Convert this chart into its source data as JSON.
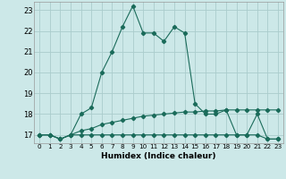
{
  "title": "",
  "xlabel": "Humidex (Indice chaleur)",
  "bg_color": "#cce8e8",
  "grid_color": "#aacccc",
  "line_color": "#1a6b5a",
  "xlim": [
    -0.5,
    23.5
  ],
  "ylim": [
    16.6,
    23.4
  ],
  "yticks": [
    17,
    18,
    19,
    20,
    21,
    22,
    23
  ],
  "xticks": [
    0,
    1,
    2,
    3,
    4,
    5,
    6,
    7,
    8,
    9,
    10,
    11,
    12,
    13,
    14,
    15,
    16,
    17,
    18,
    19,
    20,
    21,
    22,
    23
  ],
  "series": [
    {
      "x": [
        0,
        1,
        2,
        3,
        4,
        5,
        6,
        7,
        8,
        9,
        10,
        11,
        12,
        13,
        14,
        15,
        16,
        17,
        18,
        19,
        20,
        21,
        22,
        23
      ],
      "y": [
        17,
        17,
        16.8,
        17,
        17,
        17,
        17,
        17,
        17,
        17,
        17,
        17,
        17,
        17,
        17,
        17,
        17,
        17,
        17,
        17,
        17,
        17,
        16.8,
        16.8
      ]
    },
    {
      "x": [
        0,
        1,
        2,
        3,
        4,
        5,
        6,
        7,
        8,
        9,
        10,
        11,
        12,
        13,
        14,
        15,
        16,
        17,
        18,
        19,
        20,
        21,
        22,
        23
      ],
      "y": [
        17,
        17,
        16.8,
        17,
        17.2,
        17.3,
        17.5,
        17.6,
        17.7,
        17.8,
        17.9,
        17.95,
        18.0,
        18.05,
        18.1,
        18.1,
        18.15,
        18.15,
        18.2,
        18.2,
        18.2,
        18.2,
        18.2,
        18.2
      ]
    },
    {
      "x": [
        0,
        1,
        2,
        3,
        4,
        5,
        6,
        7,
        8,
        9,
        10,
        11,
        12,
        13,
        14,
        15,
        16,
        17,
        18,
        19,
        20,
        21,
        22,
        23
      ],
      "y": [
        17,
        17,
        16.8,
        17,
        18.0,
        18.3,
        20.0,
        21.0,
        22.2,
        23.2,
        21.9,
        21.9,
        21.5,
        22.2,
        21.9,
        18.5,
        18.0,
        18.0,
        18.2,
        17.0,
        17.0,
        18.0,
        16.8,
        16.8
      ]
    }
  ]
}
